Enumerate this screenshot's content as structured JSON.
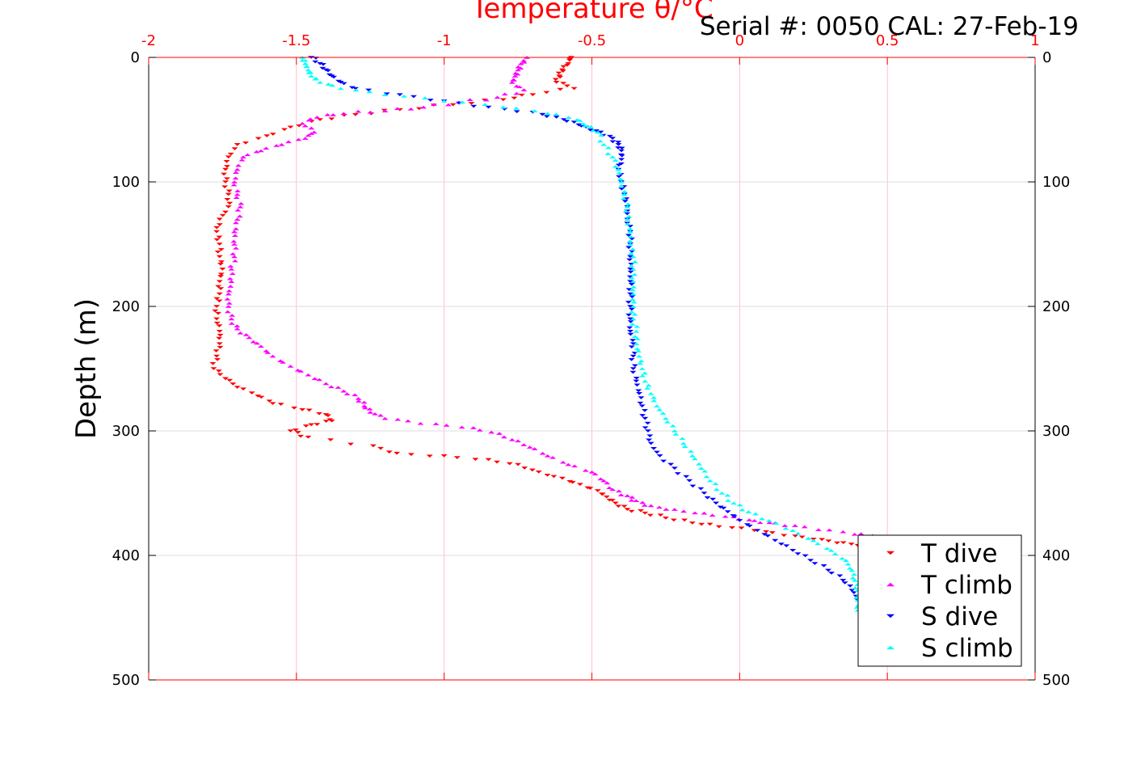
{
  "header": {
    "serial_text": "Serial #: 0050  CAL: 27-Feb-19"
  },
  "colors": {
    "t_dive": "#ff0000",
    "t_climb": "#ff00ff",
    "s_dive": "#0000ff",
    "s_climb": "#00ffff",
    "temperature_axis": "#ff0000",
    "grid_x": "#ffc0cb",
    "grid_y": "#dddddd"
  },
  "icons": {
    "dive_marker": "triangle-down-icon",
    "climb_marker": "triangle-up-icon"
  },
  "chart_data": {
    "type": "scatter",
    "title": "",
    "x_top": {
      "label": "Temperature θ/°C",
      "lim": [
        -2,
        1
      ],
      "ticks": [
        -2,
        -1.5,
        -1,
        -0.5,
        0,
        0.5,
        1
      ],
      "tick_labels": [
        "-2",
        "-1.5",
        "-1",
        "-0.5",
        "0",
        "0.5",
        "1"
      ]
    },
    "y": {
      "label": "Depth (m)",
      "lim": [
        0,
        500
      ],
      "reversed": true,
      "ticks": [
        0,
        100,
        200,
        300,
        400,
        500
      ],
      "tick_labels": [
        "0",
        "100",
        "200",
        "300",
        "400",
        "500"
      ]
    },
    "grid": true,
    "legend": {
      "placement": "bottom-right",
      "entries": [
        "T dive",
        "T climb",
        "S dive",
        "S climb"
      ]
    },
    "series": [
      {
        "name": "T dive",
        "marker": "triangle-down",
        "color": "#ff0000",
        "points": [
          [
            -0.57,
            0
          ],
          [
            -0.58,
            5
          ],
          [
            -0.6,
            10
          ],
          [
            -0.61,
            15
          ],
          [
            -0.62,
            20
          ],
          [
            -0.56,
            25
          ],
          [
            -0.7,
            30
          ],
          [
            -0.8,
            34
          ],
          [
            -0.97,
            38
          ],
          [
            -1.15,
            42
          ],
          [
            -1.3,
            46
          ],
          [
            -1.42,
            50
          ],
          [
            -1.52,
            56
          ],
          [
            -1.6,
            63
          ],
          [
            -1.7,
            70
          ],
          [
            -1.73,
            80
          ],
          [
            -1.74,
            90
          ],
          [
            -1.74,
            100
          ],
          [
            -1.73,
            110
          ],
          [
            -1.73,
            120
          ],
          [
            -1.76,
            130
          ],
          [
            -1.77,
            140
          ],
          [
            -1.76,
            150
          ],
          [
            -1.76,
            160
          ],
          [
            -1.75,
            170
          ],
          [
            -1.76,
            180
          ],
          [
            -1.76,
            190
          ],
          [
            -1.77,
            200
          ],
          [
            -1.77,
            210
          ],
          [
            -1.76,
            220
          ],
          [
            -1.76,
            230
          ],
          [
            -1.77,
            240
          ],
          [
            -1.78,
            250
          ],
          [
            -1.74,
            258
          ],
          [
            -1.7,
            265
          ],
          [
            -1.63,
            272
          ],
          [
            -1.58,
            278
          ],
          [
            -1.48,
            283
          ],
          [
            -1.4,
            287
          ],
          [
            -1.38,
            292
          ],
          [
            -1.45,
            295
          ],
          [
            -1.52,
            300
          ],
          [
            -1.46,
            305
          ],
          [
            -1.24,
            312
          ],
          [
            -1.16,
            318
          ],
          [
            -1.0,
            320
          ],
          [
            -0.85,
            323
          ],
          [
            -0.75,
            327
          ],
          [
            -0.68,
            333
          ],
          [
            -0.6,
            338
          ],
          [
            -0.54,
            343
          ],
          [
            -0.48,
            348
          ],
          [
            -0.45,
            353
          ],
          [
            -0.42,
            358
          ],
          [
            -0.38,
            363
          ],
          [
            -0.32,
            366
          ],
          [
            -0.25,
            370
          ],
          [
            -0.16,
            374
          ],
          [
            -0.07,
            377
          ],
          [
            0.05,
            380
          ],
          [
            0.15,
            384
          ],
          [
            0.25,
            387
          ],
          [
            0.33,
            390
          ],
          [
            0.4,
            392
          ],
          [
            0.45,
            394
          ]
        ]
      },
      {
        "name": "T climb",
        "marker": "triangle-up",
        "color": "#ff00ff",
        "points": [
          [
            -0.72,
            0
          ],
          [
            -0.74,
            5
          ],
          [
            -0.75,
            10
          ],
          [
            -0.76,
            15
          ],
          [
            -0.77,
            20
          ],
          [
            -0.73,
            26
          ],
          [
            -0.82,
            32
          ],
          [
            -0.95,
            36
          ],
          [
            -1.07,
            40
          ],
          [
            -1.2,
            43
          ],
          [
            -1.34,
            45
          ],
          [
            -1.43,
            48
          ],
          [
            -1.48,
            53
          ],
          [
            -1.44,
            60
          ],
          [
            -1.47,
            65
          ],
          [
            -1.55,
            70
          ],
          [
            -1.62,
            75
          ],
          [
            -1.68,
            80
          ],
          [
            -1.7,
            90
          ],
          [
            -1.71,
            100
          ],
          [
            -1.7,
            110
          ],
          [
            -1.69,
            120
          ],
          [
            -1.7,
            130
          ],
          [
            -1.71,
            140
          ],
          [
            -1.71,
            150
          ],
          [
            -1.71,
            160
          ],
          [
            -1.72,
            170
          ],
          [
            -1.72,
            180
          ],
          [
            -1.73,
            190
          ],
          [
            -1.73,
            200
          ],
          [
            -1.72,
            210
          ],
          [
            -1.7,
            218
          ],
          [
            -1.66,
            225
          ],
          [
            -1.62,
            232
          ],
          [
            -1.58,
            240
          ],
          [
            -1.52,
            248
          ],
          [
            -1.46,
            255
          ],
          [
            -1.4,
            262
          ],
          [
            -1.34,
            268
          ],
          [
            -1.29,
            274
          ],
          [
            -1.27,
            280
          ],
          [
            -1.25,
            285
          ],
          [
            -1.2,
            290
          ],
          [
            -1.08,
            294
          ],
          [
            -0.94,
            297
          ],
          [
            -0.84,
            301
          ],
          [
            -0.77,
            307
          ],
          [
            -0.71,
            313
          ],
          [
            -0.65,
            320
          ],
          [
            -0.58,
            327
          ],
          [
            -0.5,
            333
          ],
          [
            -0.46,
            340
          ],
          [
            -0.43,
            347
          ],
          [
            -0.38,
            352
          ],
          [
            -0.35,
            356
          ],
          [
            -0.3,
            360
          ],
          [
            -0.22,
            363
          ],
          [
            -0.12,
            366
          ],
          [
            -0.02,
            369
          ],
          [
            0.05,
            372
          ],
          [
            0.12,
            374
          ],
          [
            0.22,
            377
          ],
          [
            0.35,
            381
          ],
          [
            0.45,
            384
          ],
          [
            0.5,
            386
          ]
        ]
      },
      {
        "name": "S dive",
        "marker": "triangle-down",
        "color": "#0000ff",
        "points": [
          [
            -1.45,
            0
          ],
          [
            -1.42,
            5
          ],
          [
            -1.4,
            10
          ],
          [
            -1.38,
            15
          ],
          [
            -1.35,
            20
          ],
          [
            -1.3,
            25
          ],
          [
            -1.15,
            30
          ],
          [
            -1.0,
            35
          ],
          [
            -0.85,
            40
          ],
          [
            -0.7,
            44
          ],
          [
            -0.62,
            48
          ],
          [
            -0.56,
            52
          ],
          [
            -0.52,
            56
          ],
          [
            -0.47,
            60
          ],
          [
            -0.43,
            65
          ],
          [
            -0.41,
            70
          ],
          [
            -0.4,
            75
          ],
          [
            -0.4,
            82
          ],
          [
            -0.41,
            90
          ],
          [
            -0.4,
            100
          ],
          [
            -0.39,
            110
          ],
          [
            -0.38,
            120
          ],
          [
            -0.38,
            130
          ],
          [
            -0.37,
            140
          ],
          [
            -0.37,
            150
          ],
          [
            -0.37,
            160
          ],
          [
            -0.37,
            170
          ],
          [
            -0.37,
            180
          ],
          [
            -0.37,
            190
          ],
          [
            -0.37,
            200
          ],
          [
            -0.37,
            210
          ],
          [
            -0.37,
            220
          ],
          [
            -0.36,
            230
          ],
          [
            -0.36,
            240
          ],
          [
            -0.36,
            250
          ],
          [
            -0.35,
            260
          ],
          [
            -0.34,
            270
          ],
          [
            -0.33,
            280
          ],
          [
            -0.32,
            290
          ],
          [
            -0.31,
            300
          ],
          [
            -0.3,
            310
          ],
          [
            -0.27,
            320
          ],
          [
            -0.22,
            330
          ],
          [
            -0.17,
            340
          ],
          [
            -0.12,
            350
          ],
          [
            -0.08,
            358
          ],
          [
            -0.04,
            365
          ],
          [
            0.0,
            372
          ],
          [
            0.06,
            380
          ],
          [
            0.12,
            388
          ],
          [
            0.18,
            396
          ],
          [
            0.24,
            404
          ],
          [
            0.3,
            412
          ],
          [
            0.35,
            420
          ],
          [
            0.38,
            428
          ],
          [
            0.4,
            436
          ],
          [
            0.42,
            444
          ]
        ]
      },
      {
        "name": "S climb",
        "marker": "triangle-up",
        "color": "#00ffff",
        "points": [
          [
            -1.48,
            0
          ],
          [
            -1.47,
            5
          ],
          [
            -1.46,
            10
          ],
          [
            -1.45,
            15
          ],
          [
            -1.42,
            20
          ],
          [
            -1.35,
            25
          ],
          [
            -1.2,
            30
          ],
          [
            -1.0,
            35
          ],
          [
            -0.8,
            40
          ],
          [
            -0.65,
            45
          ],
          [
            -0.55,
            50
          ],
          [
            -0.52,
            55
          ],
          [
            -0.48,
            60
          ],
          [
            -0.46,
            70
          ],
          [
            -0.43,
            80
          ],
          [
            -0.41,
            90
          ],
          [
            -0.4,
            100
          ],
          [
            -0.39,
            110
          ],
          [
            -0.38,
            120
          ],
          [
            -0.38,
            130
          ],
          [
            -0.37,
            140
          ],
          [
            -0.37,
            150
          ],
          [
            -0.36,
            160
          ],
          [
            -0.36,
            170
          ],
          [
            -0.36,
            180
          ],
          [
            -0.36,
            190
          ],
          [
            -0.36,
            200
          ],
          [
            -0.36,
            210
          ],
          [
            -0.35,
            220
          ],
          [
            -0.35,
            230
          ],
          [
            -0.34,
            240
          ],
          [
            -0.33,
            250
          ],
          [
            -0.32,
            260
          ],
          [
            -0.3,
            270
          ],
          [
            -0.28,
            280
          ],
          [
            -0.25,
            290
          ],
          [
            -0.22,
            300
          ],
          [
            -0.19,
            310
          ],
          [
            -0.16,
            320
          ],
          [
            -0.13,
            330
          ],
          [
            -0.1,
            340
          ],
          [
            -0.06,
            350
          ],
          [
            -0.02,
            358
          ],
          [
            0.03,
            365
          ],
          [
            0.1,
            372
          ],
          [
            0.18,
            380
          ],
          [
            0.25,
            388
          ],
          [
            0.31,
            396
          ],
          [
            0.36,
            404
          ],
          [
            0.38,
            412
          ],
          [
            0.39,
            420
          ],
          [
            0.4,
            428
          ],
          [
            0.4,
            436
          ],
          [
            0.4,
            444
          ]
        ]
      }
    ]
  }
}
